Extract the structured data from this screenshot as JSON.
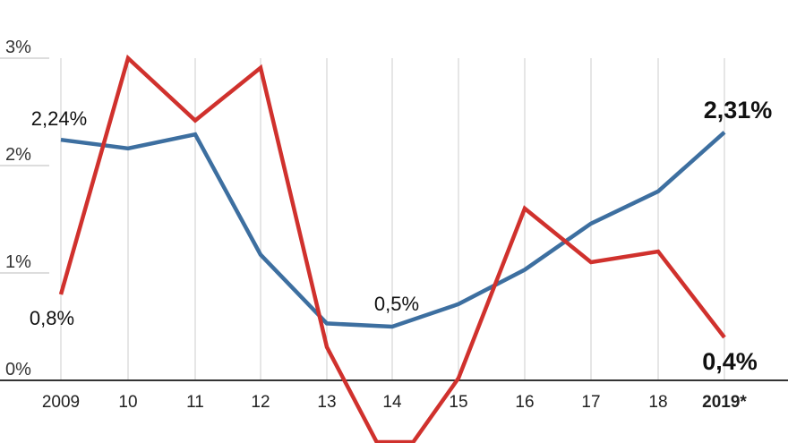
{
  "chart_data": {
    "type": "line",
    "categories": [
      "2009",
      "10",
      "11",
      "12",
      "13",
      "14",
      "15",
      "16",
      "17",
      "18",
      "2019*"
    ],
    "ylim": [
      -1,
      3
    ],
    "yticks": [
      {
        "value": 0,
        "label": "0%"
      },
      {
        "value": 1,
        "label": "1%"
      },
      {
        "value": 2,
        "label": "2%"
      },
      {
        "value": 3,
        "label": "3%"
      }
    ],
    "grid": "vertical",
    "series": [
      {
        "color": "#3d6fa0",
        "values": [
          2.24,
          2.16,
          2.29,
          1.17,
          0.53,
          0.5,
          0.71,
          1.03,
          1.46,
          1.76,
          2.31
        ]
      },
      {
        "color": "#d0312d",
        "values": [
          0.8,
          3.0,
          2.42,
          2.91,
          0.31,
          -0.85,
          0.02,
          1.6,
          1.1,
          1.2,
          0.4
        ]
      }
    ],
    "annotations": [
      {
        "text": "2,24%",
        "series": 0,
        "index": 0,
        "bold": false
      },
      {
        "text": "0,8%",
        "series": 1,
        "index": 0,
        "bold": false
      },
      {
        "text": "0,5%",
        "series": 0,
        "index": 5,
        "bold": false
      },
      {
        "text": "2,31%",
        "series": 0,
        "index": 10,
        "bold": true
      },
      {
        "text": "0,4%",
        "series": 1,
        "index": 10,
        "bold": true
      }
    ]
  }
}
